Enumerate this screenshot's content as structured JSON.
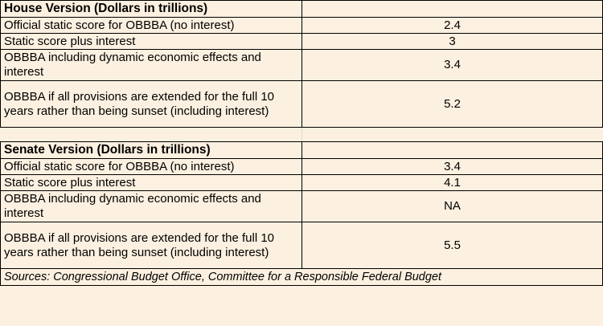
{
  "house": {
    "title": "House Version (Dollars in trillions)",
    "rows": [
      {
        "label": "Official static score for OBBBA (no interest)",
        "value": "2.4"
      },
      {
        "label": "Static score plus interest",
        "value": "3"
      },
      {
        "label": "OBBBA including dynamic economic effects and interest",
        "value": "3.4"
      },
      {
        "label": "OBBBA if all provisions are extended for the full 10 years rather than being sunset (including interest)",
        "value": "5.2"
      }
    ]
  },
  "senate": {
    "title": "Senate Version (Dollars in trillions)",
    "rows": [
      {
        "label": "Official static score for OBBBA (no interest)",
        "value": "3.4"
      },
      {
        "label": "Static score plus interest",
        "value": "4.1"
      },
      {
        "label": "OBBBA including dynamic economic effects and interest",
        "value": "NA"
      },
      {
        "label": "OBBBA if all provisions are extended for the full 10 years rather than being sunset (including interest)",
        "value": "5.5"
      }
    ]
  },
  "source": "Sources: Congressional Budget Office, Committee for a Responsible Federal Budget",
  "colors": {
    "background": "#fcf0e0",
    "border": "#000000",
    "text": "#000000"
  }
}
